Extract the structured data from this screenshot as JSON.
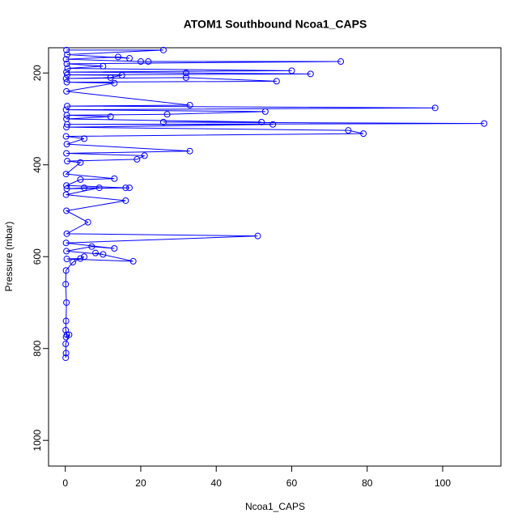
{
  "chart_data": {
    "type": "line",
    "title": "ATOM1 Southbound Ncoa1_CAPS",
    "x_label": "Ncoa1_CAPS",
    "y_label": "Pressure (mbar)",
    "color": "#0000ff",
    "xlim": [
      -4.44,
      115.44
    ],
    "ylim": [
      1056,
      145
    ],
    "xticks": [
      0,
      20,
      40,
      60,
      80,
      100
    ],
    "yticks": [
      200,
      400,
      600,
      800,
      1000
    ],
    "x": [
      0.3,
      26,
      0.5,
      17,
      14,
      0.2,
      20,
      22,
      73,
      0.4,
      10,
      0.6,
      60,
      0.3,
      32,
      65,
      0.5,
      15,
      12,
      0.2,
      32,
      56,
      0.4,
      13,
      0.3,
      33,
      0.5,
      98,
      0.2,
      53,
      27,
      0.4,
      12,
      0.3,
      52,
      26,
      111,
      0.5,
      55,
      0.3,
      75,
      79,
      0.2,
      5,
      0.4,
      33,
      0.3,
      21,
      19,
      0.5,
      4,
      0.2,
      13,
      4,
      0.3,
      16,
      17,
      0.4,
      5,
      9,
      0.2,
      16,
      0.3,
      6,
      0.4,
      51,
      0.2,
      13,
      7,
      0.3,
      10,
      8,
      18,
      0.4,
      4,
      5,
      2,
      0.2,
      0.1,
      0.3,
      0.2,
      0.1,
      0.4,
      0.2,
      1,
      0.1,
      0.2,
      0.1
    ],
    "values": [
      150,
      150,
      160,
      168,
      165,
      170,
      175,
      175,
      175,
      180,
      185,
      190,
      195,
      198,
      200,
      202,
      204,
      205,
      210,
      212,
      210,
      218,
      220,
      222,
      240,
      270,
      272,
      276,
      280,
      284,
      290,
      292,
      295,
      300,
      307,
      307,
      310,
      312,
      312,
      318,
      325,
      332,
      338,
      343,
      355,
      370,
      375,
      380,
      388,
      392,
      395,
      420,
      430,
      432,
      445,
      450,
      450,
      452,
      450,
      450,
      465,
      478,
      500,
      525,
      550,
      555,
      570,
      582,
      578,
      588,
      595,
      592,
      610,
      605,
      604,
      600,
      612,
      630,
      660,
      700,
      740,
      760,
      770,
      775,
      770,
      790,
      810,
      820
    ]
  }
}
